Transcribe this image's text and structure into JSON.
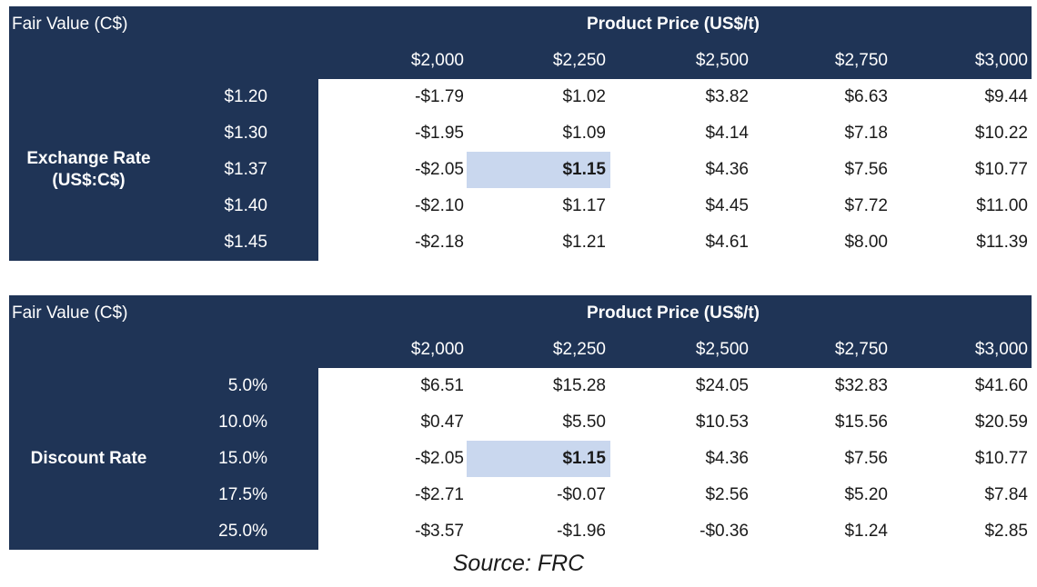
{
  "chart_data": [
    {
      "type": "table",
      "corner_label": "Fair Value (C$)",
      "column_header": "Product Price (US$/t)",
      "columns": [
        "$2,000",
        "$2,250",
        "$2,500",
        "$2,750",
        "$3,000"
      ],
      "row_header": "Exchange Rate (US$:C$)",
      "row_header_lines": [
        "Exchange Rate",
        "(US$:C$)"
      ],
      "rows": [
        "$1.20",
        "$1.30",
        "$1.37",
        "$1.40",
        "$1.45"
      ],
      "values": [
        [
          "-$1.79",
          "$1.02",
          "$3.82",
          "$6.63",
          "$9.44"
        ],
        [
          "-$1.95",
          "$1.09",
          "$4.14",
          "$7.18",
          "$10.22"
        ],
        [
          "-$2.05",
          "$1.15",
          "$4.36",
          "$7.56",
          "$10.77"
        ],
        [
          "-$2.10",
          "$1.17",
          "$4.45",
          "$7.72",
          "$11.00"
        ],
        [
          "-$2.18",
          "$1.21",
          "$4.61",
          "$8.00",
          "$11.39"
        ]
      ],
      "highlight": {
        "row": 2,
        "col": 1
      }
    },
    {
      "type": "table",
      "corner_label": "Fair Value (C$)",
      "column_header": "Product Price (US$/t)",
      "columns": [
        "$2,000",
        "$2,250",
        "$2,500",
        "$2,750",
        "$3,000"
      ],
      "row_header": "Discount Rate",
      "row_header_lines": [
        "Discount Rate"
      ],
      "rows": [
        "5.0%",
        "10.0%",
        "15.0%",
        "17.5%",
        "25.0%"
      ],
      "values": [
        [
          "$6.51",
          "$15.28",
          "$24.05",
          "$32.83",
          "$41.60"
        ],
        [
          "$0.47",
          "$5.50",
          "$10.53",
          "$15.56",
          "$20.59"
        ],
        [
          "-$2.05",
          "$1.15",
          "$4.36",
          "$7.56",
          "$10.77"
        ],
        [
          "-$2.71",
          "-$0.07",
          "$2.56",
          "$5.20",
          "$7.84"
        ],
        [
          "-$3.57",
          "-$1.96",
          "-$0.36",
          "$1.24",
          "$2.85"
        ]
      ],
      "highlight": {
        "row": 2,
        "col": 1
      }
    }
  ],
  "source": "Source: FRC"
}
